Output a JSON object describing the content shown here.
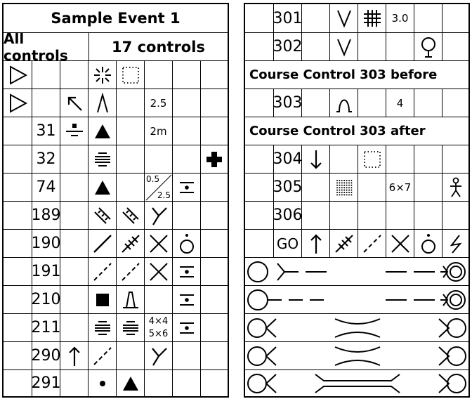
{
  "left": {
    "title": "Sample Event 1",
    "all_controls_label": "All controls",
    "controls_count_label": "17 controls",
    "rows": [
      {
        "code": "",
        "col": ""
      },
      {
        "code": "",
        "size": "2.5"
      },
      {
        "code": "31",
        "size": "2m"
      },
      {
        "code": "32"
      },
      {
        "code": "74",
        "size_top": "0.5",
        "size_bottom": "2.5"
      },
      {
        "code": "189"
      },
      {
        "code": "190"
      },
      {
        "code": "191"
      },
      {
        "code": "210"
      },
      {
        "code": "211",
        "size_top": "4×4",
        "size_bottom": "5×6"
      },
      {
        "code": "290"
      },
      {
        "code": "291"
      }
    ]
  },
  "right": {
    "rows": [
      {
        "code": "301",
        "size": "3.0"
      },
      {
        "code": "302"
      },
      {
        "code": "303",
        "size": "4"
      },
      {
        "code": "304"
      },
      {
        "code": "305",
        "size": "6×7"
      },
      {
        "code": "306"
      },
      {
        "code": "GO"
      }
    ],
    "text_303_before": "Course Control 303 before",
    "text_303_after": "Course Control 303 after"
  },
  "icons": {
    "start": "start-triangle-icon",
    "finish": "finish-double-circle-icon"
  },
  "colors": {
    "ink": "#000000",
    "background": "#ffffff"
  }
}
